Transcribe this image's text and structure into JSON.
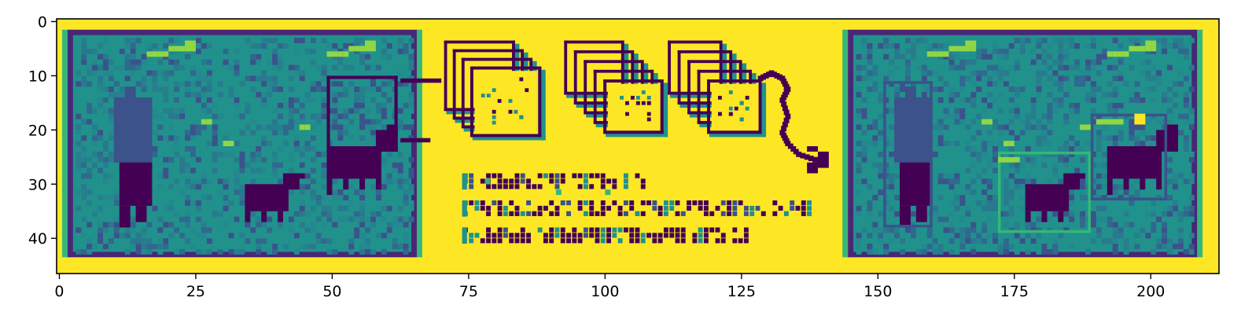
{
  "chart_data": {
    "type": "heatmap",
    "colormap": "viridis",
    "xlim": [
      -0.5,
      212.5
    ],
    "ylim": [
      46.5,
      -0.5
    ],
    "grid": false,
    "x_ticks": [
      0,
      25,
      50,
      75,
      100,
      125,
      150,
      175,
      200
    ],
    "x_tick_labels": [
      "0",
      "25",
      "50",
      "75",
      "100",
      "125",
      "150",
      "175",
      "200"
    ],
    "y_ticks": [
      0,
      10,
      20,
      30,
      40
    ],
    "y_tick_labels": [
      "0",
      "10",
      "20",
      "30",
      "40"
    ],
    "background_value": 1.0,
    "colors": {
      "background": "#fde725",
      "dark": "#440154",
      "deep": "#482777",
      "navy": "#3b528b",
      "blue": "#31688e",
      "teal": "#21918c",
      "green": "#35b779",
      "lime": "#90d743",
      "yellow": "#fde725"
    },
    "panels": [
      {
        "name": "input-image",
        "x": [
          1.5,
          65.5
        ],
        "y": [
          1.5,
          43.5
        ],
        "fill_value": 0.52,
        "border_value": 0.2
      },
      {
        "name": "output-image",
        "x": [
          144.5,
          208.5
        ],
        "y": [
          1.5,
          43.5
        ],
        "fill_value": 0.52,
        "border_value": 0.2
      }
    ],
    "text_rows_encoded": [
      "1. Pixelated input image.",
      "2. Run convolutional neural network.",
      "3. Predict bounding boxes and labels."
    ]
  }
}
